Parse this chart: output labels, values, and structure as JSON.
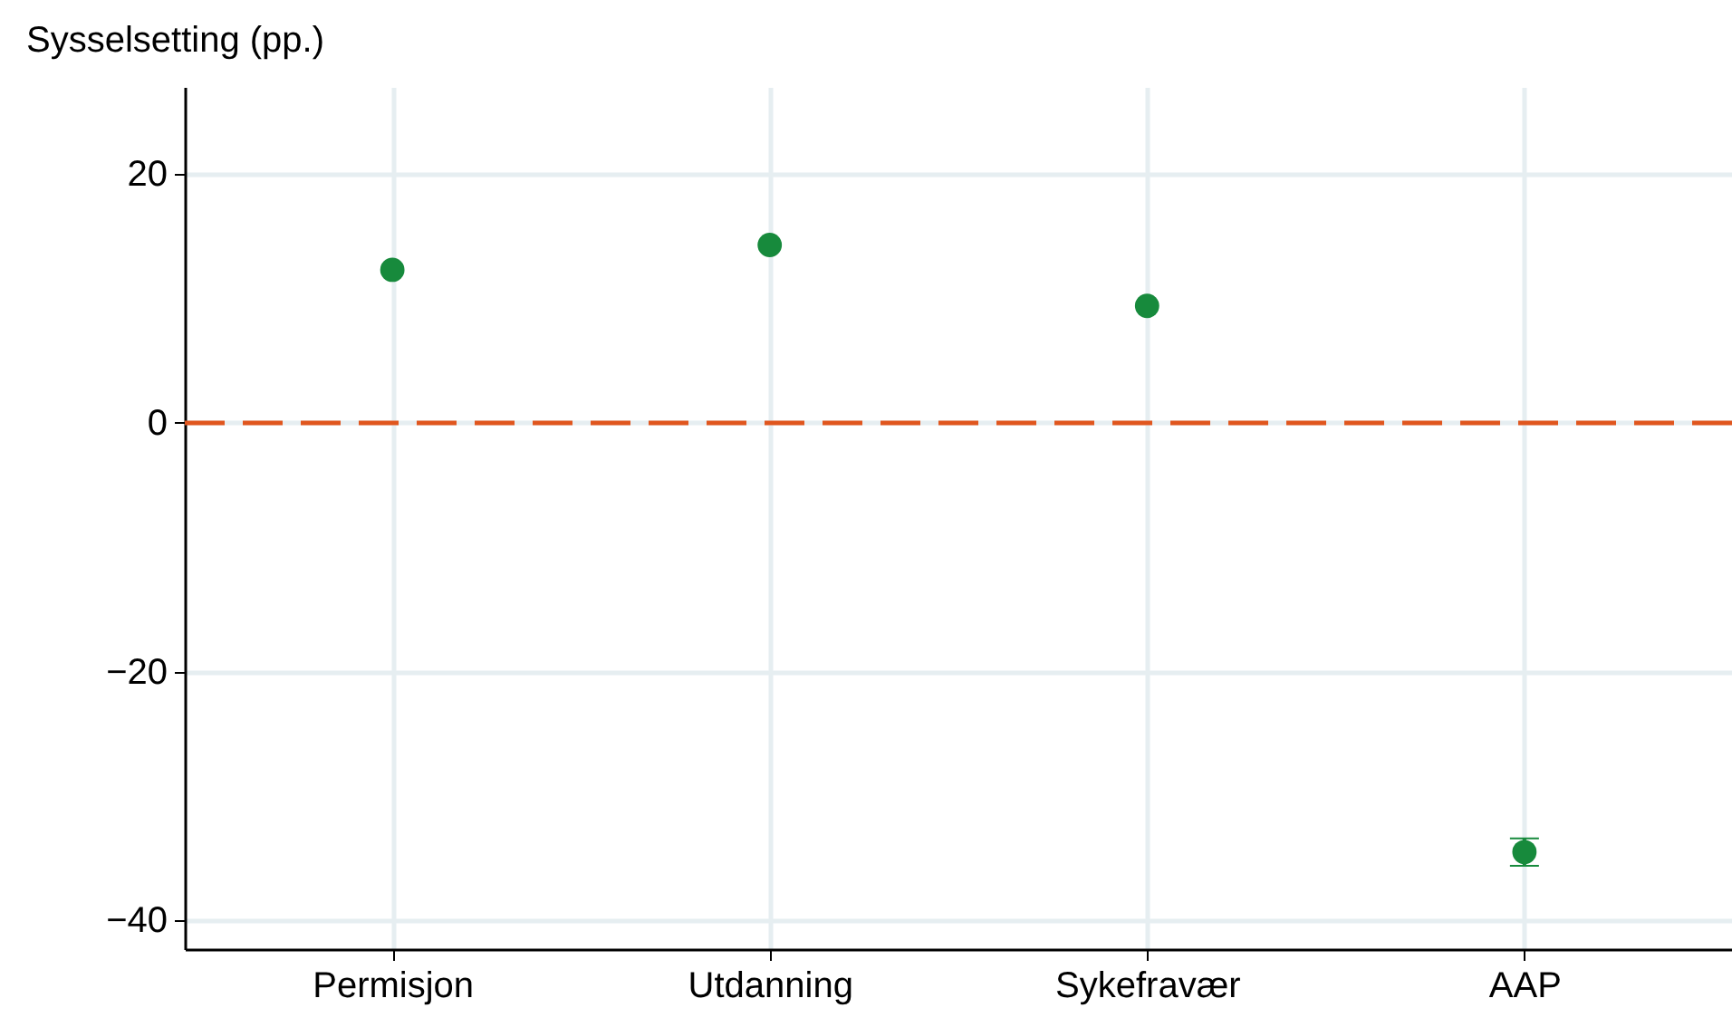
{
  "chart_data": {
    "type": "scatter",
    "ylabel": "Sysselsetting (pp.)",
    "categories": [
      "Permisjon",
      "Utdanning",
      "Sykefravær",
      "AAP"
    ],
    "series": [
      {
        "color": "#178a3c",
        "values": [
          12.3,
          14.3,
          9.4,
          -34.5
        ],
        "errors": [
          null,
          null,
          null,
          1.1
        ]
      }
    ],
    "ylim": [
      -42.3,
      27
    ],
    "yticks": [
      -40,
      -20,
      0,
      20
    ],
    "grid": true,
    "marker": "circle",
    "ref_lines": [
      {
        "axis": "y",
        "value": 0,
        "label": null,
        "color": "#e0561e",
        "line_style": "dashed"
      }
    ]
  }
}
